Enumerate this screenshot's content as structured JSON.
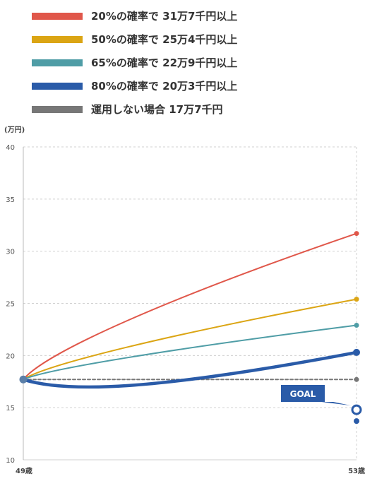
{
  "chart_data": {
    "type": "line",
    "ylabel": "(万円)",
    "ylim": [
      10,
      40
    ],
    "yticks": [
      "10",
      "15",
      "20",
      "25",
      "30",
      "35",
      "40"
    ],
    "xticks": [
      "49歳",
      "53歳"
    ],
    "grid": true,
    "legend_position": "top-left",
    "series": [
      {
        "name": "20%の確率で 31万7千円以上",
        "color": "#e0574a",
        "start": 17.7,
        "end": 31.7,
        "dip": 0,
        "width": 2
      },
      {
        "name": "50%の確率で 25万4千円以上",
        "color": "#dba514",
        "start": 17.7,
        "end": 25.4,
        "dip": 0,
        "width": 2
      },
      {
        "name": "65%の確率で 22万9千円以上",
        "color": "#4f9da6",
        "start": 17.7,
        "end": 22.9,
        "dip": 0,
        "width": 2
      },
      {
        "name": "80%の確率で 20万3千円以上",
        "color": "#2a5ba8",
        "start": 17.7,
        "end": 20.3,
        "dip": 1.0,
        "width": 4.5
      },
      {
        "name": "運用しない場合 17万7千円",
        "color": "#777777",
        "start": 17.7,
        "end": 17.7,
        "dip": 0,
        "width": 2,
        "dashed": true
      }
    ],
    "goal": {
      "label": "GOAL",
      "value": 14.8,
      "color": "#2a5ba8"
    }
  }
}
